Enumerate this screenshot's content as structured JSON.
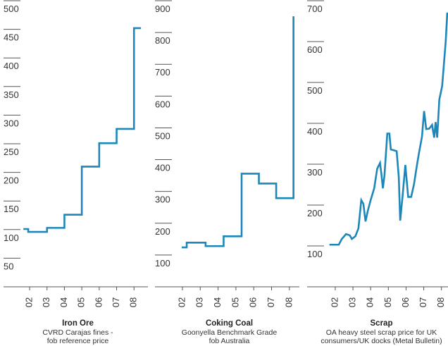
{
  "chart_data": [
    {
      "type": "line",
      "title": "Iron Ore",
      "subtitle": [
        "CVRD Carajas fines -",
        "fob reference price"
      ],
      "color": "#1d87b9",
      "x": [
        1.64,
        1.92,
        1.92,
        3,
        3,
        4,
        4,
        5,
        5,
        6,
        6,
        7,
        7,
        8,
        8,
        8.4
      ],
      "values": [
        101,
        101,
        96,
        96,
        103,
        103,
        126,
        126,
        210,
        210,
        251,
        251,
        276,
        276,
        452,
        452
      ],
      "xlim": [
        0.5,
        8.8
      ],
      "xticks": [
        {
          "value": 2,
          "label": "02"
        },
        {
          "value": 3,
          "label": "03"
        },
        {
          "value": 4,
          "label": "04"
        },
        {
          "value": 5,
          "label": "05"
        },
        {
          "value": 6,
          "label": "06"
        },
        {
          "value": 7,
          "label": "07"
        },
        {
          "value": 8,
          "label": "08"
        }
      ],
      "ylim": [
        0,
        500
      ],
      "yticks": [
        50,
        100,
        150,
        200,
        250,
        300,
        350,
        400,
        450,
        500
      ]
    },
    {
      "type": "line",
      "title": "Coking Coal",
      "subtitle": [
        "Goonyella Benchmark Grade",
        "fob Australia"
      ],
      "color": "#1d87b9",
      "x": [
        1.96,
        2.24,
        2.24,
        3.3,
        3.3,
        4.31,
        4.31,
        5.32,
        5.32,
        6.29,
        6.29,
        7.26,
        7.26,
        8.23,
        8.23
      ],
      "values": [
        124,
        124,
        139,
        139,
        128,
        128,
        159,
        159,
        356,
        356,
        325,
        325,
        279,
        279,
        851
      ],
      "xlim": [
        0.46,
        8.56
      ],
      "xticks": [
        {
          "value": 2,
          "label": "02"
        },
        {
          "value": 3,
          "label": "03"
        },
        {
          "value": 4,
          "label": "04"
        },
        {
          "value": 5,
          "label": "05"
        },
        {
          "value": 6,
          "label": "06"
        },
        {
          "value": 7,
          "label": "07"
        },
        {
          "value": 8,
          "label": "08"
        }
      ],
      "ylim": [
        0,
        900
      ],
      "yticks": [
        100,
        200,
        300,
        400,
        500,
        600,
        700,
        800,
        900
      ]
    },
    {
      "type": "line",
      "title": "Scrap",
      "subtitle": [
        "OA heavy steel scrap price for UK",
        "consumers/UK docks (Metal Bulletin)"
      ],
      "color": "#1d87b9",
      "x": [
        1.67,
        2.2,
        2.37,
        2.61,
        2.82,
        2.94,
        3.14,
        3.31,
        3.47,
        3.59,
        3.71,
        3.84,
        4.0,
        4.2,
        4.37,
        4.53,
        4.61,
        4.69,
        4.78,
        4.94,
        5.06,
        5.14,
        5.31,
        5.47,
        5.59,
        5.67,
        5.8,
        5.96,
        6.12,
        6.29,
        6.45,
        6.61,
        6.73,
        6.9,
        7.02,
        7.14,
        7.31,
        7.47,
        7.59,
        7.67,
        7.76,
        7.88,
        8.04,
        8.24,
        8.33
      ],
      "values": [
        103,
        103,
        117,
        129,
        126,
        117,
        124,
        143,
        212,
        203,
        160,
        186,
        212,
        241,
        289,
        303,
        275,
        241,
        272,
        375,
        375,
        336,
        334,
        332,
        268,
        162,
        220,
        298,
        220,
        220,
        251,
        296,
        327,
        367,
        430,
        386,
        387,
        396,
        365,
        403,
        365,
        458,
        491,
        599,
        671
      ],
      "xlim": [
        0.41,
        8.57
      ],
      "xticks": [
        {
          "value": 2,
          "label": "02"
        },
        {
          "value": 3,
          "label": "03"
        },
        {
          "value": 4,
          "label": "04"
        },
        {
          "value": 5,
          "label": "05"
        },
        {
          "value": 6,
          "label": "06"
        },
        {
          "value": 7,
          "label": "07"
        },
        {
          "value": 8,
          "label": "08"
        }
      ],
      "ylim": [
        0,
        700
      ],
      "yticks": [
        100,
        200,
        300,
        400,
        500,
        600,
        700
      ]
    }
  ]
}
